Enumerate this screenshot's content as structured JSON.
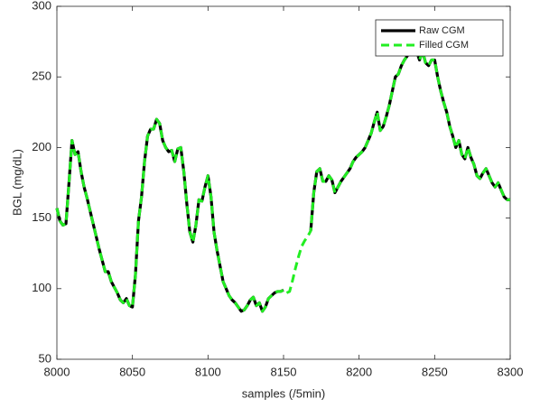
{
  "chart_data": {
    "type": "line",
    "xlabel": "samples (/5min)",
    "ylabel": "BGL (mg/dL)",
    "xlim": [
      8000,
      8300
    ],
    "xticks": [
      8000,
      8050,
      8100,
      8150,
      8200,
      8250,
      8300
    ],
    "ylim": [
      50,
      300
    ],
    "yticks": [
      50,
      100,
      150,
      200,
      250,
      300
    ],
    "grid": false,
    "legend": "upper right",
    "x": [
      8000,
      8002,
      8004,
      8006,
      8008,
      8010,
      8012,
      8014,
      8016,
      8018,
      8020,
      8022,
      8024,
      8026,
      8028,
      8030,
      8032,
      8034,
      8036,
      8038,
      8040,
      8042,
      8044,
      8046,
      8048,
      8050,
      8052,
      8054,
      8056,
      8058,
      8060,
      8062,
      8064,
      8066,
      8068,
      8070,
      8072,
      8074,
      8076,
      8078,
      8080,
      8082,
      8084,
      8086,
      8088,
      8090,
      8092,
      8094,
      8096,
      8098,
      8100,
      8102,
      8104,
      8106,
      8108,
      8110,
      8112,
      8114,
      8116,
      8118,
      8120,
      8122,
      8124,
      8126,
      8128,
      8130,
      8132,
      8134,
      8136,
      8138,
      8140,
      8142,
      8144,
      8146,
      8148,
      8150,
      8152,
      8154,
      8156,
      8158,
      8160,
      8162,
      8164,
      8166,
      8168,
      8170,
      8172,
      8174,
      8176,
      8178,
      8180,
      8182,
      8184,
      8186,
      8188,
      8190,
      8192,
      8194,
      8196,
      8198,
      8200,
      8202,
      8204,
      8206,
      8208,
      8210,
      8212,
      8214,
      8216,
      8218,
      8220,
      8222,
      8224,
      8226,
      8228,
      8230,
      8232,
      8234,
      8236,
      8238,
      8240,
      8242,
      8244,
      8246,
      8248,
      8250,
      8252,
      8254,
      8256,
      8258,
      8260,
      8262,
      8264,
      8266,
      8268,
      8270,
      8272,
      8274,
      8276,
      8278,
      8280,
      8282,
      8284,
      8286,
      8288,
      8290,
      8292,
      8294,
      8296,
      8298,
      8300
    ],
    "series": [
      {
        "name": "Raw CGM",
        "color": "#000000",
        "linestyle": "solid",
        "values": [
          157,
          148,
          145,
          146,
          175,
          205,
          195,
          197,
          183,
          172,
          164,
          155,
          146,
          137,
          128,
          120,
          112,
          112,
          105,
          101,
          97,
          92,
          90,
          93,
          88,
          87,
          110,
          148,
          165,
          190,
          208,
          213,
          213,
          220,
          217,
          205,
          200,
          197,
          198,
          190,
          199,
          200,
          183,
          160,
          140,
          133,
          145,
          163,
          162,
          172,
          180,
          165,
          140,
          127,
          116,
          105,
          100,
          95,
          92,
          90,
          87,
          84,
          85,
          88,
          92,
          94,
          88,
          90,
          84,
          87,
          93,
          95,
          97,
          98,
          98,
          99,
          null,
          null,
          null,
          null,
          null,
          null,
          null,
          null,
          141,
          168,
          183,
          185,
          176,
          176,
          180,
          177,
          168,
          172,
          176,
          179,
          182,
          185,
          190,
          193,
          195,
          197,
          200,
          205,
          210,
          218,
          225,
          212,
          215,
          222,
          230,
          240,
          250,
          252,
          258,
          262,
          265,
          268,
          272,
          268,
          262,
          268,
          260,
          258,
          262,
          262,
          250,
          240,
          232,
          225,
          215,
          208,
          200,
          205,
          195,
          192,
          200,
          193,
          188,
          180,
          178,
          182,
          185,
          180,
          175,
          172,
          175,
          170,
          165,
          163,
          163
        ]
      },
      {
        "name": "Filled CGM",
        "color": "#22ee22",
        "linestyle": "dashed",
        "values": [
          157,
          148,
          145,
          146,
          175,
          205,
          195,
          197,
          183,
          172,
          164,
          155,
          146,
          137,
          128,
          120,
          112,
          112,
          105,
          101,
          97,
          92,
          90,
          93,
          88,
          87,
          110,
          148,
          165,
          190,
          208,
          213,
          213,
          220,
          217,
          205,
          200,
          197,
          198,
          190,
          199,
          200,
          183,
          160,
          140,
          133,
          145,
          163,
          162,
          172,
          180,
          165,
          140,
          127,
          116,
          105,
          100,
          95,
          92,
          90,
          87,
          84,
          85,
          88,
          92,
          94,
          88,
          90,
          84,
          87,
          93,
          95,
          97,
          98,
          98,
          99,
          97,
          98,
          106,
          115,
          123,
          130,
          134,
          137,
          141,
          168,
          183,
          185,
          176,
          176,
          180,
          177,
          168,
          172,
          176,
          179,
          182,
          185,
          190,
          193,
          195,
          197,
          200,
          205,
          210,
          218,
          225,
          212,
          215,
          222,
          230,
          240,
          250,
          252,
          258,
          262,
          265,
          268,
          272,
          268,
          262,
          268,
          260,
          258,
          262,
          262,
          250,
          240,
          232,
          225,
          215,
          208,
          200,
          205,
          195,
          192,
          200,
          193,
          188,
          180,
          178,
          182,
          185,
          180,
          175,
          172,
          175,
          170,
          165,
          163,
          163
        ]
      }
    ]
  }
}
